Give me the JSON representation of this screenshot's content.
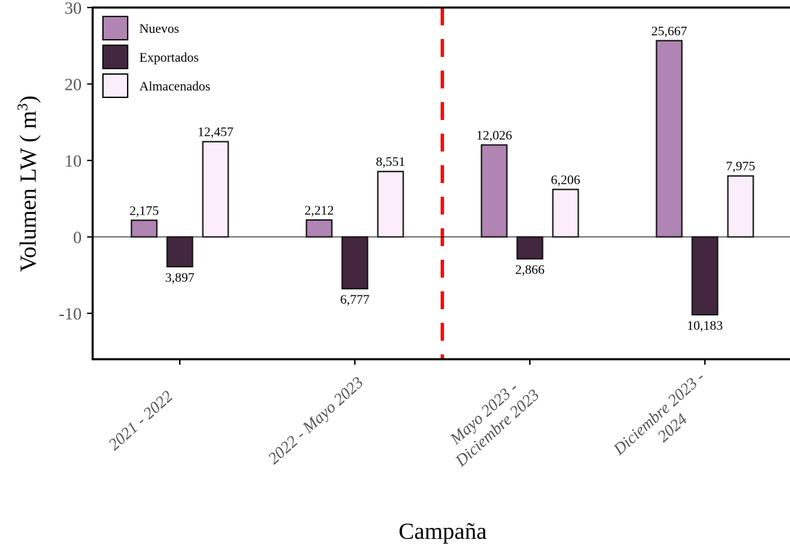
{
  "chart_data": {
    "type": "bar",
    "categories": [
      [
        "2021 - 2022"
      ],
      [
        "2022 - Mayo 2023"
      ],
      [
        "Mayo 2023 -",
        "Diciembre 2023"
      ],
      [
        "Diciembre 2023 -",
        "2024"
      ]
    ],
    "series": [
      {
        "name": "Nuevos",
        "color": "#b085b3",
        "values": [
          2.175,
          2.212,
          12.026,
          25.667
        ],
        "labels": [
          "2,175",
          "2,212",
          "12,026",
          "25,667"
        ]
      },
      {
        "name": "Exportados",
        "color": "#43273f",
        "values": [
          -3.897,
          -6.777,
          -2.866,
          -10.183
        ],
        "labels": [
          "3,897",
          "6,777",
          "2,866",
          "10,183"
        ]
      },
      {
        "name": "Almacenados",
        "color": "#fbeefa",
        "values": [
          12.457,
          8.551,
          6.206,
          7.975
        ],
        "labels": [
          "12,457",
          "8,551",
          "6,206",
          "7,975"
        ]
      }
    ],
    "xlabel": "Campaña",
    "ylabel": "Volumen LW ( m",
    "ylabel_superscript": "3",
    "ylim": [
      -16,
      30
    ],
    "yticks": [
      30,
      20,
      10,
      0,
      -10
    ],
    "ytick_labels": [
      "30",
      "20",
      "10",
      "0",
      "-10"
    ],
    "divider": {
      "after_category": 2,
      "color": "#ee1111",
      "style": "dashed"
    },
    "zero_line": true,
    "grid": false,
    "legend_position": "top-left"
  }
}
